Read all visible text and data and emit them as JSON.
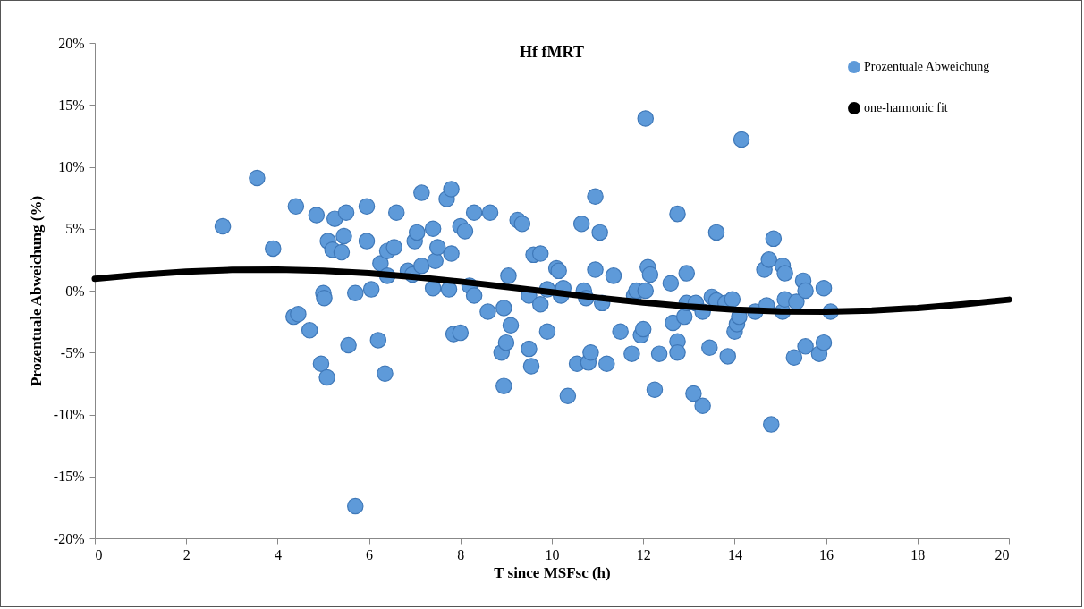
{
  "chart_data": {
    "type": "scatter",
    "title": "Hf fMRT",
    "xlabel": "T since MSFsc (h)",
    "ylabel": "Prozentuale Abweichung (%)",
    "xlim": [
      0,
      20
    ],
    "xticks": [
      0,
      2,
      4,
      6,
      8,
      10,
      12,
      14,
      16,
      18,
      20
    ],
    "ylim": [
      -20,
      20
    ],
    "yticks": [
      {
        "value": -20,
        "label": "-20%"
      },
      {
        "value": -15,
        "label": "-15%"
      },
      {
        "value": -10,
        "label": "-10%"
      },
      {
        "value": -5,
        "label": "-5%"
      },
      {
        "value": 0,
        "label": "0%"
      },
      {
        "value": 5,
        "label": "5%"
      },
      {
        "value": 10,
        "label": "10%"
      },
      {
        "value": 15,
        "label": "15%"
      },
      {
        "value": 20,
        "label": "20%"
      }
    ],
    "grid": false,
    "legend": "top right",
    "series": [
      {
        "name": "Prozentuale Abweichung",
        "color": "#5e9ad9",
        "marker": "circle",
        "x": [
          2.8,
          3.55,
          3.9,
          4.35,
          4.4,
          4.45,
          4.7,
          4.85,
          4.95,
          5.0,
          5.02,
          5.08,
          5.1,
          5.2,
          5.25,
          5.4,
          5.45,
          5.5,
          5.55,
          5.7,
          5.7,
          5.95,
          5.95,
          6.05,
          6.2,
          6.25,
          6.35,
          6.4,
          6.4,
          6.55,
          6.6,
          6.85,
          6.95,
          7.0,
          7.05,
          7.15,
          7.15,
          7.4,
          7.4,
          7.45,
          7.5,
          7.7,
          7.75,
          7.8,
          7.8,
          7.85,
          8.0,
          8.0,
          8.1,
          8.2,
          8.3,
          8.3,
          8.6,
          8.65,
          8.9,
          8.95,
          8.95,
          9.0,
          9.05,
          9.1,
          9.25,
          9.35,
          9.5,
          9.5,
          9.55,
          9.6,
          9.75,
          9.75,
          9.9,
          9.9,
          10.1,
          10.15,
          10.2,
          10.25,
          10.35,
          10.55,
          10.65,
          10.7,
          10.75,
          10.8,
          10.85,
          10.95,
          10.95,
          11.05,
          11.1,
          11.2,
          11.35,
          11.5,
          11.75,
          11.8,
          11.85,
          11.95,
          12.0,
          12.05,
          12.05,
          12.1,
          12.15,
          12.25,
          12.35,
          12.6,
          12.65,
          12.75,
          12.75,
          12.75,
          12.9,
          12.95,
          12.95,
          13.1,
          13.15,
          13.3,
          13.3,
          13.45,
          13.5,
          13.6,
          13.6,
          13.8,
          13.85,
          13.95,
          14.0,
          14.05,
          14.1,
          14.15,
          14.45,
          14.65,
          14.7,
          14.75,
          14.8,
          14.85,
          15.05,
          15.05,
          15.1,
          15.1,
          15.3,
          15.35,
          15.5,
          15.55,
          15.55,
          15.85,
          15.95,
          15.95,
          16.1
        ],
        "values": [
          5.2,
          9.1,
          3.4,
          -2.1,
          6.8,
          -1.9,
          -3.2,
          6.1,
          -5.9,
          -0.2,
          -0.6,
          -7.0,
          4.0,
          3.3,
          5.8,
          3.1,
          4.4,
          6.3,
          -4.4,
          -0.2,
          -17.4,
          4.0,
          6.8,
          0.1,
          -4.0,
          2.2,
          -6.7,
          3.2,
          1.2,
          3.5,
          6.3,
          1.6,
          1.3,
          4.0,
          4.7,
          2.0,
          7.9,
          5.0,
          0.2,
          2.4,
          3.5,
          7.4,
          0.1,
          3.0,
          8.2,
          -3.5,
          5.2,
          -3.4,
          4.8,
          0.4,
          6.3,
          -0.4,
          -1.7,
          6.3,
          -5.0,
          -1.4,
          -7.7,
          -4.2,
          1.2,
          -2.8,
          5.7,
          5.4,
          -0.4,
          -4.7,
          -6.1,
          2.9,
          3.0,
          -1.1,
          0.1,
          -3.3,
          1.8,
          1.6,
          -0.4,
          0.2,
          -8.5,
          -5.9,
          5.4,
          0.0,
          -0.6,
          -5.8,
          -5.0,
          1.7,
          7.6,
          4.7,
          -1.0,
          -5.9,
          1.2,
          -3.3,
          -5.1,
          -0.4,
          0.0,
          -3.6,
          -3.1,
          0.0,
          13.9,
          1.9,
          1.3,
          -8.0,
          -5.1,
          0.6,
          -2.6,
          6.2,
          -4.1,
          -5.0,
          -2.1,
          1.4,
          -1.0,
          -8.3,
          -1.0,
          -1.7,
          -9.3,
          -4.6,
          -0.5,
          -0.8,
          4.7,
          -1.0,
          -5.3,
          -0.7,
          -3.3,
          -2.7,
          -2.1,
          12.2,
          -1.7,
          1.7,
          -1.2,
          2.5,
          -10.8,
          4.2,
          -1.7,
          2.0,
          1.4,
          -0.7,
          -5.4,
          -0.9,
          0.8,
          -4.5,
          0.0,
          -5.1,
          0.2,
          -4.2,
          -1.7
        ]
      },
      {
        "name": "one-harmonic fit",
        "type": "line",
        "color": "#000000",
        "x": [
          0,
          1,
          2,
          3,
          4,
          5,
          6,
          7,
          8,
          9,
          10,
          11,
          12,
          13,
          14,
          15,
          16,
          17,
          18,
          19,
          20
        ],
        "values": [
          0.96,
          1.29,
          1.53,
          1.67,
          1.69,
          1.6,
          1.4,
          1.1,
          0.73,
          0.31,
          -0.13,
          -0.57,
          -0.96,
          -1.29,
          -1.53,
          -1.67,
          -1.7,
          -1.6,
          -1.4,
          -1.1,
          -0.73
        ]
      }
    ]
  }
}
